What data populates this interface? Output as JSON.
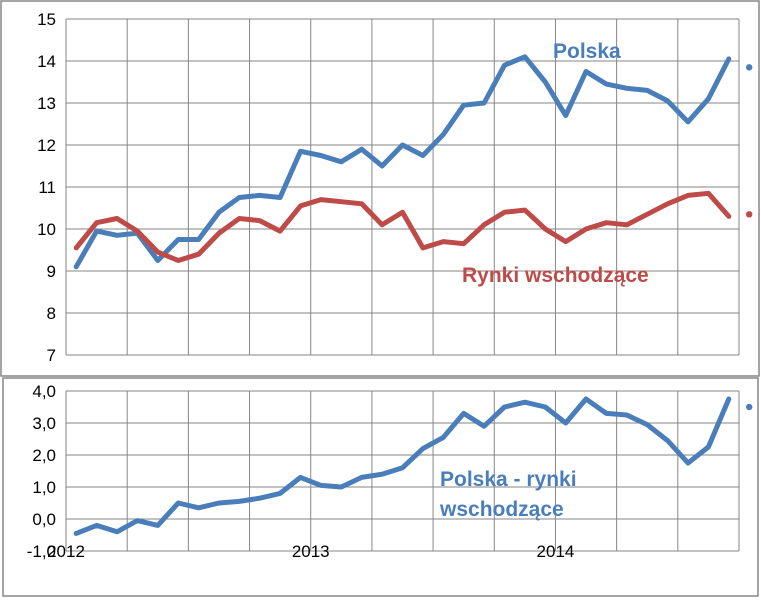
{
  "colors": {
    "polska": "#4a7ebb",
    "rynki": "#be4b48",
    "grid": "#868686",
    "frame": "#868686"
  },
  "chart_data": [
    {
      "type": "line",
      "title": "",
      "xlabel": "",
      "ylabel": "",
      "ylim": [
        7,
        15
      ],
      "yticks": [
        "15",
        "14",
        "13",
        "12",
        "11",
        "10",
        "9",
        "8",
        "7"
      ],
      "grid": true,
      "x_start": "2012-01",
      "x_end": "2014-09",
      "series": [
        {
          "name": "Polska",
          "values": [
            9.1,
            9.95,
            9.85,
            9.9,
            9.25,
            9.75,
            9.75,
            10.4,
            10.75,
            10.8,
            10.75,
            11.85,
            11.75,
            11.6,
            11.9,
            11.5,
            12.0,
            11.75,
            12.25,
            12.95,
            13.0,
            13.9,
            14.1,
            13.5,
            12.7,
            13.75,
            13.45,
            13.35,
            13.3,
            13.05,
            12.55,
            13.1,
            14.05
          ],
          "forecast": [
            13.85,
            13.65
          ]
        },
        {
          "name": "Rynki wschodzące",
          "values": [
            9.55,
            10.15,
            10.25,
            9.95,
            9.45,
            9.25,
            9.4,
            9.9,
            10.25,
            10.2,
            9.95,
            10.55,
            10.7,
            10.65,
            10.6,
            10.1,
            10.4,
            9.55,
            9.7,
            9.65,
            10.1,
            10.4,
            10.45,
            10.0,
            9.7,
            10.0,
            10.15,
            10.1,
            10.35,
            10.6,
            10.8,
            10.85,
            10.3
          ],
          "forecast": [
            10.35,
            10.4
          ]
        }
      ]
    },
    {
      "type": "line",
      "title": "",
      "xlabel": "",
      "ylabel": "",
      "ylim": [
        -1,
        4
      ],
      "yticks": [
        "4,0",
        "3,0",
        "2,0",
        "1,0",
        "0,0",
        "-1,0"
      ],
      "xticks": [
        "2012",
        "2013",
        "2014"
      ],
      "grid": true,
      "x_start": "2012-01",
      "x_end": "2014-09",
      "series": [
        {
          "name": "Polska - rynki wschodzące",
          "label_lines": [
            "Polska - rynki",
            "wschodzące"
          ],
          "values": [
            -0.45,
            -0.2,
            -0.4,
            -0.05,
            -0.2,
            0.5,
            0.35,
            0.5,
            0.55,
            0.65,
            0.8,
            1.3,
            1.05,
            1.0,
            1.3,
            1.4,
            1.6,
            2.2,
            2.55,
            3.3,
            2.9,
            3.5,
            3.65,
            3.5,
            3.0,
            3.75,
            3.3,
            3.25,
            2.95,
            2.45,
            1.75,
            2.25,
            3.75
          ],
          "forecast": [
            3.5,
            3.3
          ]
        }
      ]
    }
  ]
}
